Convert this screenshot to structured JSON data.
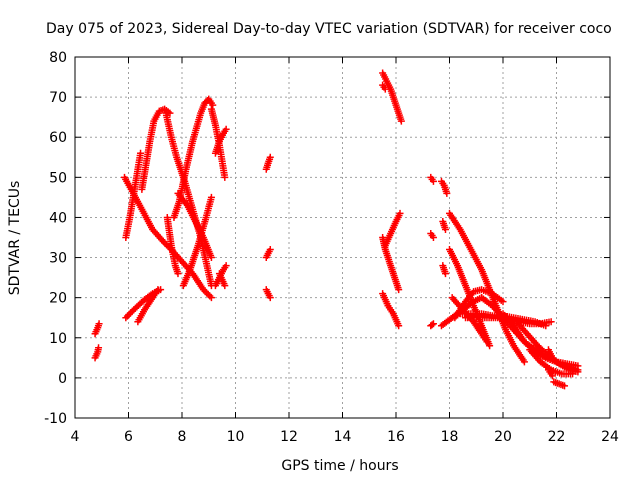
{
  "chart_data": {
    "type": "scatter",
    "title": "Day 075 of 2023, Sidereal Day-to-day VTEC variation (SDTVAR) for receiver coco",
    "xlabel": "GPS time / hours",
    "ylabel": "SDTVAR / TECUs",
    "xlim": [
      4,
      24
    ],
    "ylim": [
      -10,
      80
    ],
    "xticks": [
      4,
      6,
      8,
      10,
      12,
      14,
      16,
      18,
      20,
      22,
      24
    ],
    "yticks": [
      -10,
      0,
      10,
      20,
      30,
      40,
      50,
      60,
      70,
      80
    ],
    "grid": true,
    "marker": "+",
    "color": "#ff0000",
    "segments": [
      {
        "x": [
          4.75,
          4.85,
          4.9
        ],
        "y": [
          11,
          12.5,
          13.5
        ]
      },
      {
        "x": [
          4.75,
          4.85,
          4.88
        ],
        "y": [
          5,
          6.5,
          7.5
        ]
      },
      {
        "x": [
          5.9,
          6.05,
          6.2,
          6.35,
          6.45
        ],
        "y": [
          35,
          40,
          46,
          52,
          56
        ]
      },
      {
        "x": [
          5.85,
          6.1,
          6.5,
          6.9,
          7.3,
          7.6,
          8.0,
          8.4,
          8.8,
          9.1
        ],
        "y": [
          50,
          47,
          42,
          37,
          34,
          32,
          29,
          26,
          22,
          20
        ]
      },
      {
        "x": [
          5.9,
          6.2,
          6.6,
          6.9,
          7.2
        ],
        "y": [
          15,
          17,
          19.5,
          21,
          22
        ]
      },
      {
        "x": [
          6.35,
          6.6,
          6.9,
          7.1
        ],
        "y": [
          14,
          17,
          20,
          22
        ]
      },
      {
        "x": [
          6.5,
          6.65,
          6.8,
          6.95,
          7.15,
          7.35,
          7.55
        ],
        "y": [
          47,
          53,
          59,
          64,
          66.5,
          67,
          66
        ]
      },
      {
        "x": [
          7.4,
          7.6,
          7.8,
          8.1,
          8.4,
          8.7,
          8.9,
          9.1
        ],
        "y": [
          66,
          60,
          55,
          49,
          42,
          35,
          29,
          23
        ]
      },
      {
        "x": [
          7.45,
          7.6,
          7.75,
          7.85
        ],
        "y": [
          40,
          33,
          28,
          26
        ]
      },
      {
        "x": [
          7.7,
          7.9,
          8.15,
          8.4,
          8.7,
          8.85,
          9.0,
          9.15
        ],
        "y": [
          40,
          44,
          52,
          59,
          66,
          68.5,
          69.5,
          68
        ]
      },
      {
        "x": [
          7.85,
          8.2,
          8.5,
          8.8,
          9.1
        ],
        "y": [
          46,
          43,
          39,
          35,
          30
        ]
      },
      {
        "x": [
          8.05,
          8.3,
          8.6,
          8.9,
          9.1
        ],
        "y": [
          23,
          27,
          33,
          40,
          45
        ]
      },
      {
        "x": [
          9.1,
          9.25,
          9.4,
          9.5,
          9.6
        ],
        "y": [
          67,
          63,
          58,
          54,
          50
        ]
      },
      {
        "x": [
          9.25,
          9.4,
          9.55,
          9.65
        ],
        "y": [
          56,
          59,
          61,
          62
        ]
      },
      {
        "x": [
          9.25,
          9.4,
          9.55,
          9.65
        ],
        "y": [
          23,
          25,
          27,
          28
        ]
      },
      {
        "x": [
          9.4,
          9.5,
          9.6
        ],
        "y": [
          26,
          24.5,
          23
        ]
      },
      {
        "x": [
          11.15,
          11.22,
          11.3
        ],
        "y": [
          52,
          53.5,
          55
        ]
      },
      {
        "x": [
          11.15,
          11.22,
          11.3
        ],
        "y": [
          30,
          31,
          32
        ]
      },
      {
        "x": [
          11.15,
          11.22,
          11.3
        ],
        "y": [
          22,
          21,
          20
        ]
      },
      {
        "x": [
          15.5,
          15.65,
          15.8,
          15.95,
          16.1,
          16.2
        ],
        "y": [
          76,
          74,
          72,
          69,
          66,
          64
        ]
      },
      {
        "x": [
          15.5,
          15.6
        ],
        "y": [
          73,
          72
        ]
      },
      {
        "x": [
          15.5,
          15.6,
          15.8,
          16.0,
          16.1
        ],
        "y": [
          35,
          32,
          28,
          24,
          22
        ]
      },
      {
        "x": [
          15.6,
          15.8,
          16.0,
          16.15
        ],
        "y": [
          33,
          36,
          39,
          41
        ]
      },
      {
        "x": [
          15.5,
          15.7,
          15.9,
          16.1
        ],
        "y": [
          21,
          18,
          16,
          13
        ]
      },
      {
        "x": [
          17.3,
          17.4
        ],
        "y": [
          50,
          49
        ]
      },
      {
        "x": [
          17.3,
          17.4
        ],
        "y": [
          36,
          35
        ]
      },
      {
        "x": [
          17.3,
          17.4
        ],
        "y": [
          13,
          13.5
        ]
      },
      {
        "x": [
          17.7,
          17.8,
          17.9
        ],
        "y": [
          49,
          48,
          46
        ]
      },
      {
        "x": [
          17.75,
          17.85
        ],
        "y": [
          39,
          37
        ]
      },
      {
        "x": [
          17.75,
          17.85
        ],
        "y": [
          28,
          26
        ]
      },
      {
        "x": [
          17.7,
          18.0,
          18.3,
          18.6,
          18.9,
          19.2
        ],
        "y": [
          13,
          14.5,
          16,
          17.5,
          19,
          20
        ]
      },
      {
        "x": [
          18.0,
          18.4,
          18.8,
          19.2,
          19.5,
          19.8,
          20.1,
          20.4,
          20.8
        ],
        "y": [
          41,
          37,
          32,
          27,
          22,
          17,
          12,
          8,
          4
        ]
      },
      {
        "x": [
          18.0,
          18.3,
          18.6,
          18.9,
          19.2,
          19.5
        ],
        "y": [
          32,
          28,
          23,
          18,
          13,
          8
        ]
      },
      {
        "x": [
          18.1,
          18.5,
          18.9,
          19.2,
          19.4
        ],
        "y": [
          20,
          17,
          14,
          11,
          9
        ]
      },
      {
        "x": [
          18.2,
          18.6,
          18.9,
          19.2,
          19.6,
          20.0
        ],
        "y": [
          15,
          19,
          21.5,
          22,
          21,
          19
        ]
      },
      {
        "x": [
          18.4,
          18.8,
          19.2,
          19.6,
          20.0,
          20.4,
          20.8,
          21.2,
          21.6
        ],
        "y": [
          16,
          16,
          16,
          15.5,
          15.5,
          15,
          14.5,
          14,
          13
        ]
      },
      {
        "x": [
          18.6,
          19.0,
          19.4,
          19.8,
          20.2,
          20.6,
          21.0,
          21.4,
          21.8
        ],
        "y": [
          15,
          15,
          15,
          15,
          14.5,
          14,
          13.5,
          13.5,
          14
        ]
      },
      {
        "x": [
          19.2,
          19.6,
          20.0,
          20.4,
          20.8,
          21.2,
          21.6,
          22.0,
          22.4,
          22.8
        ],
        "y": [
          20,
          18,
          15,
          12,
          9,
          7,
          5,
          4,
          3.5,
          3
        ]
      },
      {
        "x": [
          20.0,
          20.4,
          20.8,
          21.2,
          21.6,
          22.0,
          22.4,
          22.8
        ],
        "y": [
          16,
          13,
          9,
          6.5,
          5,
          4,
          3,
          2
        ]
      },
      {
        "x": [
          20.5,
          20.9,
          21.3,
          21.7,
          22.1,
          22.5,
          22.8
        ],
        "y": [
          14,
          11,
          8,
          5.5,
          3.5,
          2,
          1.5
        ]
      },
      {
        "x": [
          21.0,
          21.4,
          21.8,
          22.2,
          22.6
        ],
        "y": [
          7,
          4,
          2,
          1,
          1
        ]
      },
      {
        "x": [
          21.7,
          21.85
        ],
        "y": [
          7,
          5
        ]
      },
      {
        "x": [
          21.7,
          21.85
        ],
        "y": [
          2,
          0.5
        ]
      },
      {
        "x": [
          21.9,
          22.1,
          22.3
        ],
        "y": [
          -1,
          -1.5,
          -2
        ]
      }
    ]
  }
}
